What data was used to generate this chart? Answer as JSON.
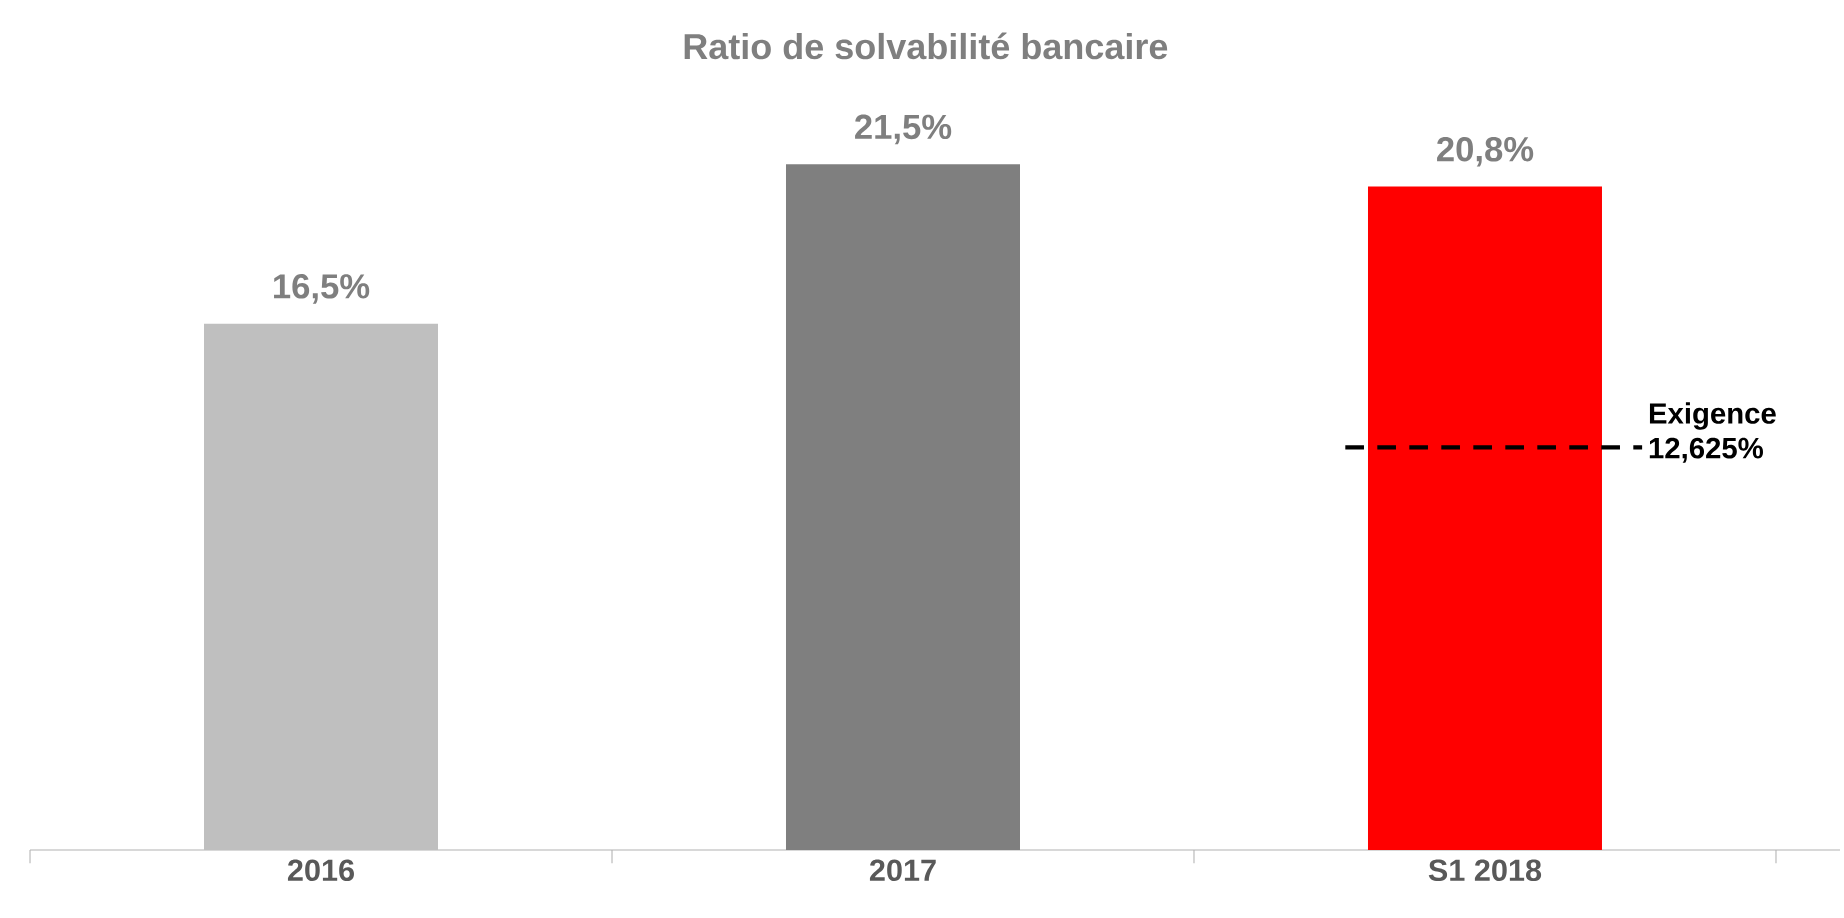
{
  "chart_data": {
    "type": "bar",
    "title": "Ratio de solvabilité bancaire",
    "categories": [
      "2016",
      "2017",
      "S1 2018"
    ],
    "values": [
      16.5,
      21.5,
      20.8
    ],
    "colors": [
      "#bfbfbf",
      "#7f7f7f",
      "#ff0000"
    ],
    "value_labels": [
      "16,5%",
      "21,5%",
      "20,8%"
    ],
    "ref_lines": [
      {
        "axis": "y",
        "value": 12.625,
        "label": "Exigence 12,625%",
        "color": "#000000",
        "line_style": "dashed"
      }
    ]
  }
}
